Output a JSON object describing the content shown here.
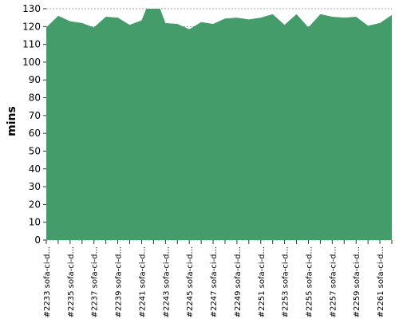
{
  "chart_data": {
    "type": "area",
    "title": "",
    "xlabel": "",
    "ylabel": "mins",
    "ylim": [
      0,
      130
    ],
    "yticks": [
      0,
      10,
      20,
      30,
      40,
      50,
      60,
      70,
      80,
      90,
      100,
      110,
      120,
      130
    ],
    "grid": true,
    "color": "#459c6b",
    "x_tick_labels": [
      "#2233 sofa-ci-d...",
      "#2235 sofa-ci-d...",
      "#2237 sofa-ci-d...",
      "#2239 sofa-ci-d...",
      "#2241 sofa-ci-d...",
      "#2243 sofa-ci-d...",
      "#2245 sofa-ci-d...",
      "#2247 sofa-ci-d...",
      "#2249 sofa-ci-d...",
      "#2251 sofa-ci-d...",
      "#2253 sofa-ci-d...",
      "#2255 sofa-ci-d...",
      "#2257 sofa-ci-d...",
      "#2259 sofa-ci-d...",
      "#2261 sofa-ci-d..."
    ],
    "x": [
      2233,
      2234,
      2235,
      2236,
      2237,
      2238,
      2239,
      2240,
      2241,
      2242,
      2243,
      2244,
      2245,
      2246,
      2247,
      2248,
      2249,
      2250,
      2251,
      2252,
      2253,
      2254,
      2255,
      2256,
      2257,
      2258,
      2259,
      2260,
      2261,
      2262
    ],
    "values": [
      119.5,
      126,
      123,
      122,
      119.5,
      125.5,
      125,
      121,
      123.5,
      140,
      122,
      121.5,
      118.5,
      122.5,
      121.5,
      124.5,
      125,
      124,
      125,
      127,
      121,
      127,
      119.5,
      127,
      125.5,
      125,
      125.5,
      120.5,
      122,
      126.5
    ]
  }
}
